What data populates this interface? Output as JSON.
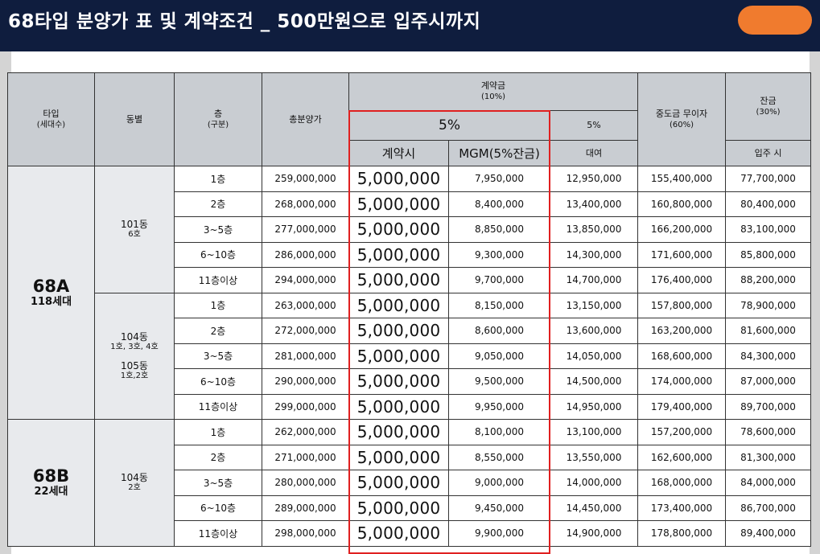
{
  "title": "68타입 분양가 표 및 계약조건 _ 500만원으로 입주시까지",
  "header": {
    "type": "타입",
    "type_sub": "(세대수)",
    "building": "동별",
    "floor": "층",
    "floor_sub": "(구분)",
    "total_price": "총분양가",
    "contract": "계약금",
    "contract_sub": "(10%)",
    "five_pct": "5%",
    "five_pct_right": "5%",
    "at_contract": "계약시",
    "mgm": "MGM(5%잔금)",
    "loan": "대여",
    "middle": "중도금 무이자",
    "middle_sub": "(60%)",
    "balance": "잔금",
    "balance_sub": "(30%)",
    "move_in": "입주 시"
  },
  "groups": {
    "g1": {
      "type": "68A",
      "units": "118세대",
      "building_a": "101동",
      "building_a_sub": "6호"
    },
    "g2": {
      "building_a": "104동",
      "building_a_sub": "1호, 3호, 4호",
      "building_b": "105동",
      "building_b_sub": "1호,2호"
    },
    "g3": {
      "type": "68B",
      "units": "22세대",
      "building_a": "104동",
      "building_a_sub": "2호"
    }
  },
  "rows": [
    {
      "floor": "1층",
      "total": "259,000,000",
      "contract": "5,000,000",
      "mgm": "7,950,000",
      "loan": "12,950,000",
      "middle": "155,400,000",
      "balance": "77,700,000"
    },
    {
      "floor": "2층",
      "total": "268,000,000",
      "contract": "5,000,000",
      "mgm": "8,400,000",
      "loan": "13,400,000",
      "middle": "160,800,000",
      "balance": "80,400,000"
    },
    {
      "floor": "3~5층",
      "total": "277,000,000",
      "contract": "5,000,000",
      "mgm": "8,850,000",
      "loan": "13,850,000",
      "middle": "166,200,000",
      "balance": "83,100,000"
    },
    {
      "floor": "6~10층",
      "total": "286,000,000",
      "contract": "5,000,000",
      "mgm": "9,300,000",
      "loan": "14,300,000",
      "middle": "171,600,000",
      "balance": "85,800,000"
    },
    {
      "floor": "11층이상",
      "total": "294,000,000",
      "contract": "5,000,000",
      "mgm": "9,700,000",
      "loan": "14,700,000",
      "middle": "176,400,000",
      "balance": "88,200,000"
    },
    {
      "floor": "1층",
      "total": "263,000,000",
      "contract": "5,000,000",
      "mgm": "8,150,000",
      "loan": "13,150,000",
      "middle": "157,800,000",
      "balance": "78,900,000"
    },
    {
      "floor": "2층",
      "total": "272,000,000",
      "contract": "5,000,000",
      "mgm": "8,600,000",
      "loan": "13,600,000",
      "middle": "163,200,000",
      "balance": "81,600,000"
    },
    {
      "floor": "3~5층",
      "total": "281,000,000",
      "contract": "5,000,000",
      "mgm": "9,050,000",
      "loan": "14,050,000",
      "middle": "168,600,000",
      "balance": "84,300,000"
    },
    {
      "floor": "6~10층",
      "total": "290,000,000",
      "contract": "5,000,000",
      "mgm": "9,500,000",
      "loan": "14,500,000",
      "middle": "174,000,000",
      "balance": "87,000,000"
    },
    {
      "floor": "11층이상",
      "total": "299,000,000",
      "contract": "5,000,000",
      "mgm": "9,950,000",
      "loan": "14,950,000",
      "middle": "179,400,000",
      "balance": "89,700,000"
    },
    {
      "floor": "1층",
      "total": "262,000,000",
      "contract": "5,000,000",
      "mgm": "8,100,000",
      "loan": "13,100,000",
      "middle": "157,200,000",
      "balance": "78,600,000"
    },
    {
      "floor": "2층",
      "total": "271,000,000",
      "contract": "5,000,000",
      "mgm": "8,550,000",
      "loan": "13,550,000",
      "middle": "162,600,000",
      "balance": "81,300,000"
    },
    {
      "floor": "3~5층",
      "total": "280,000,000",
      "contract": "5,000,000",
      "mgm": "9,000,000",
      "loan": "14,000,000",
      "middle": "168,000,000",
      "balance": "84,000,000"
    },
    {
      "floor": "6~10층",
      "total": "289,000,000",
      "contract": "5,000,000",
      "mgm": "9,450,000",
      "loan": "14,450,000",
      "middle": "173,400,000",
      "balance": "86,700,000"
    },
    {
      "floor": "11층이상",
      "total": "298,000,000",
      "contract": "5,000,000",
      "mgm": "9,900,000",
      "loan": "14,900,000",
      "middle": "178,800,000",
      "balance": "89,400,000"
    }
  ],
  "colors": {
    "header_bar": "#0f1d3e",
    "redaction_blob": "#f07b2e",
    "highlight_border": "#e02020",
    "header_cell": "#c9cdd2"
  }
}
